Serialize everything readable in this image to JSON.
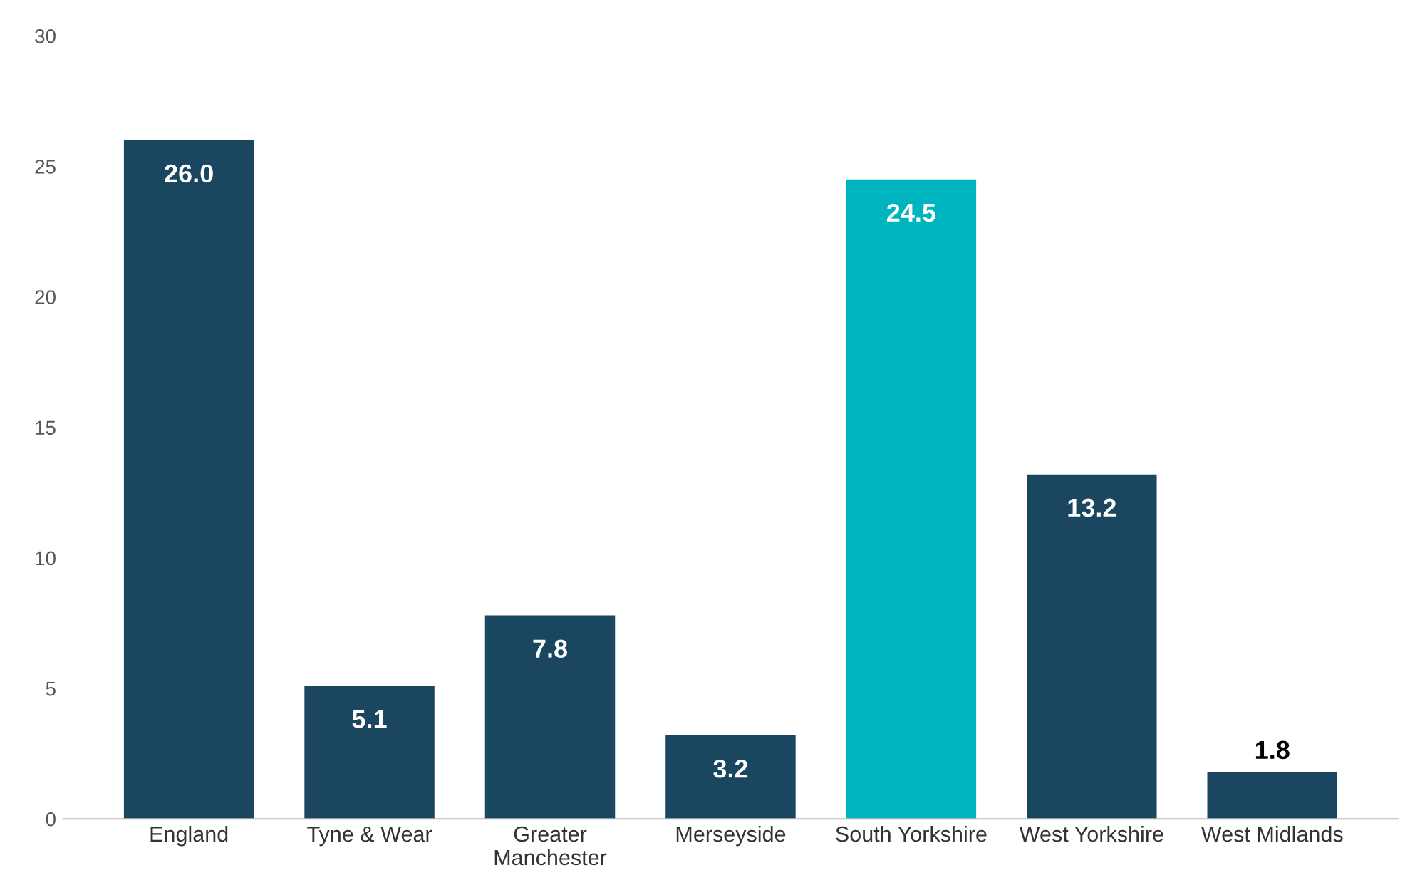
{
  "chart_data": {
    "type": "bar",
    "categories": [
      "England",
      "Tyne & Wear",
      "Greater\nManchester",
      "Merseyside",
      "South Yorkshire",
      "West Yorkshire",
      "West Midlands"
    ],
    "values": [
      26.0,
      5.1,
      7.8,
      3.2,
      24.5,
      13.2,
      1.8
    ],
    "value_labels": [
      "26.0",
      "5.1",
      "7.8",
      "3.2",
      "24.5",
      "13.2",
      "1.8"
    ],
    "colors": [
      "#1b4660",
      "#1b4660",
      "#1b4660",
      "#1b4660",
      "#00b4bf",
      "#1b4660",
      "#1b4660"
    ],
    "ylim": [
      0,
      30
    ],
    "yticks": [
      0,
      5,
      10,
      15,
      20,
      25,
      30
    ],
    "grid": false
  }
}
